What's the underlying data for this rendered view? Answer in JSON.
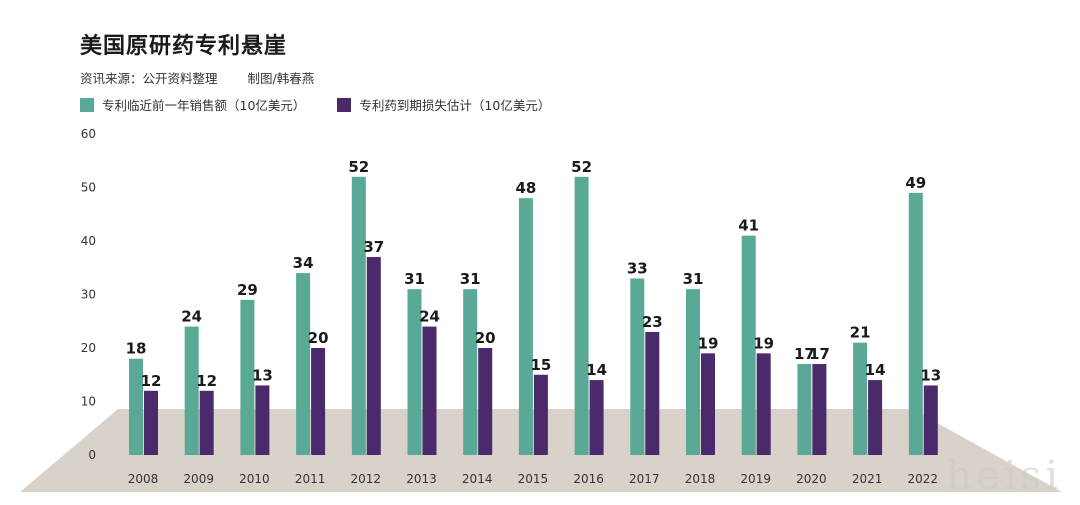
{
  "title": "美国原研药专利悬崖",
  "source": "资讯来源：公开资料整理",
  "credit": "制图/韩春燕",
  "colors": {
    "series1": "#5aa896",
    "series2": "#4a2a6b",
    "floor": "#d9d2cb",
    "axis_text": "#333333"
  },
  "watermark": "heisi",
  "chart_data": {
    "type": "bar",
    "categories": [
      "2008",
      "2009",
      "2010",
      "2011",
      "2012",
      "2013",
      "2014",
      "2015",
      "2016",
      "2017",
      "2018",
      "2019",
      "2020",
      "2021",
      "2022"
    ],
    "series": [
      {
        "name": "专利临近前一年销售额（10亿美元）",
        "values": [
          18,
          24,
          29,
          34,
          52,
          31,
          31,
          48,
          52,
          33,
          31,
          41,
          17,
          21,
          49
        ]
      },
      {
        "name": "专利药到期损失估计（10亿美元）",
        "values": [
          12,
          12,
          13,
          20,
          37,
          24,
          20,
          15,
          14,
          23,
          19,
          19,
          17,
          14,
          13
        ]
      }
    ],
    "ylim": [
      0,
      60
    ],
    "yticks": [
      0,
      10,
      20,
      30,
      40,
      50,
      60
    ],
    "grid": false,
    "legend": "top-left"
  }
}
